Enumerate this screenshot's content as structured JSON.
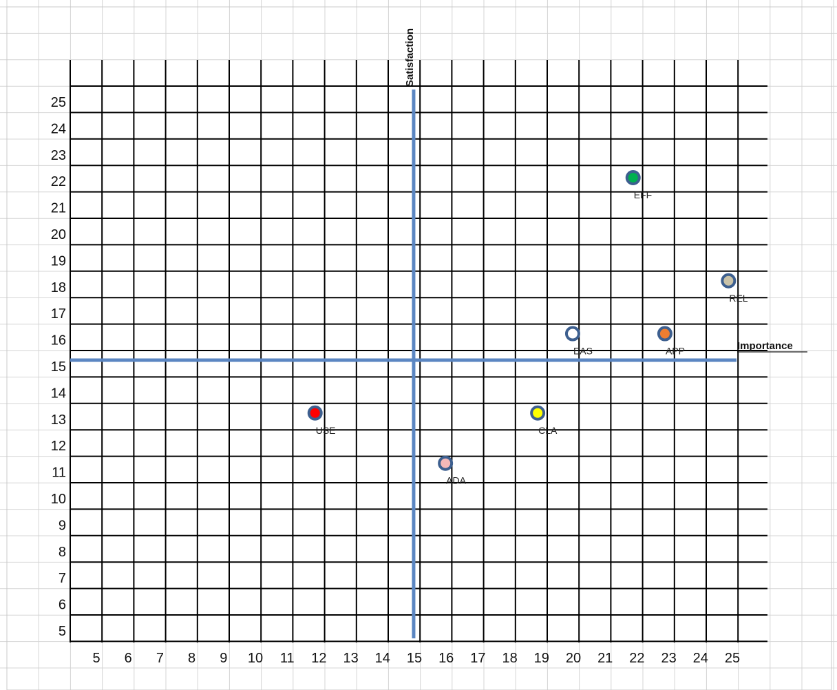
{
  "chart_data": {
    "type": "scatter",
    "xlabel": "Importance",
    "ylabel": "Satisfaction",
    "x_ticks": [
      "5",
      "6",
      "7",
      "8",
      "9",
      "10",
      "11",
      "12",
      "13",
      "14",
      "15",
      "16",
      "17",
      "18",
      "19",
      "20",
      "21",
      "22",
      "23",
      "24",
      "25"
    ],
    "y_ticks": [
      "25",
      "24",
      "23",
      "22",
      "21",
      "20",
      "19",
      "18",
      "17",
      "16",
      "15",
      "14",
      "13",
      "12",
      "11",
      "10",
      "9",
      "8",
      "7",
      "6",
      "5"
    ],
    "crosshair": {
      "x": 15.3,
      "y": 15.6
    },
    "points": [
      {
        "label": "EFF",
        "x": 22.2,
        "y": 22.5,
        "color": "#00b050"
      },
      {
        "label": "REL",
        "x": 25.2,
        "y": 18.6,
        "color": "#c9c2a8"
      },
      {
        "label": "EAS",
        "x": 20.3,
        "y": 16.6,
        "color": "#ffffff"
      },
      {
        "label": "APP",
        "x": 23.2,
        "y": 16.6,
        "color": "#ed7d31"
      },
      {
        "label": "USE",
        "x": 12.2,
        "y": 13.6,
        "color": "#ff0000"
      },
      {
        "label": "CLA",
        "x": 19.2,
        "y": 13.6,
        "color": "#ffff00"
      },
      {
        "label": "ADA",
        "x": 16.3,
        "y": 11.7,
        "color": "#f4b8b8"
      }
    ],
    "grid": true,
    "colors": {
      "axis_line": "#5b86c2",
      "point_ring": "#3d5f8f",
      "grid_major": "#000000",
      "grid_minor": "#d4d4d4"
    }
  }
}
